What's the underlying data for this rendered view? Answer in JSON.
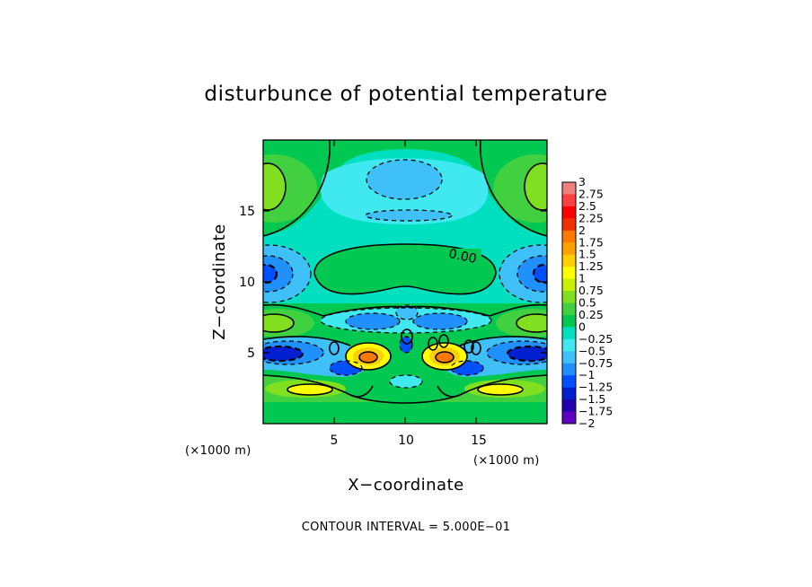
{
  "chart_data": {
    "type": "contour",
    "title": "disturbunce of potential temperature",
    "xlabel": "X−coordinate",
    "ylabel": "Z−coordinate",
    "x_unit": "(×1000 m)",
    "y_unit": "(×1000 m)",
    "xlim": [
      0,
      20
    ],
    "ylim": [
      0,
      20
    ],
    "x_ticks": [
      "5",
      "10",
      "15"
    ],
    "y_ticks": [
      "5",
      "10",
      "15"
    ],
    "contour_label": "0.00",
    "footer": "CONTOUR INTERVAL = 5.000E−01",
    "colorbar": {
      "labels": [
        "3",
        "2.75",
        "2.5",
        "2.25",
        "2",
        "1.75",
        "1.5",
        "1.25",
        "1",
        "0.75",
        "0.5",
        "0.25",
        "0",
        "−0.25",
        "−0.5",
        "−0.75",
        "−1",
        "−1.25",
        "−1.5",
        "−1.75",
        "−2"
      ],
      "colors": [
        "#f08080",
        "#ff4040",
        "#ff0000",
        "#f03000",
        "#ff7800",
        "#ffa000",
        "#ffd000",
        "#ffff00",
        "#c8f000",
        "#80e020",
        "#40d040",
        "#00c850",
        "#00e0c0",
        "#40e8f0",
        "#40c0f8",
        "#2090ff",
        "#0050ff",
        "#0020d0",
        "#2000b0",
        "#6000c0"
      ]
    },
    "features": [
      {
        "x": 7.2,
        "z": 4.6,
        "value": 1.9
      },
      {
        "x": 12.8,
        "z": 4.6,
        "value": 1.9
      },
      {
        "x": 1.5,
        "z": 4.9,
        "value": -1.6
      },
      {
        "x": 18.5,
        "z": 4.9,
        "value": -1.6
      },
      {
        "x": 1.2,
        "z": 10.8,
        "value": -1.0
      },
      {
        "x": 18.8,
        "z": 10.8,
        "value": -1.0
      },
      {
        "x": 1.0,
        "z": 17.0,
        "value": 0.75
      },
      {
        "x": 19.0,
        "z": 17.0,
        "value": 0.75
      },
      {
        "x": 10.0,
        "z": 17.3,
        "value": -0.3
      },
      {
        "x": 10.0,
        "z": 10.8,
        "value": 0.1
      }
    ]
  }
}
